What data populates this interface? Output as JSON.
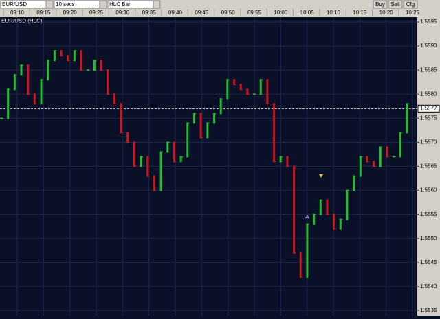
{
  "toolbar": {
    "symbol": "EUR/USD",
    "interval": "10 secs",
    "chart_style": "HLC Bar",
    "buttons": [
      "Buy",
      "Sell",
      "Cfg"
    ]
  },
  "chart_data": {
    "type": "line",
    "title": "EUR/USD (HLC)",
    "x_axis_labels": [
      "09:10",
      "09:15",
      "09:20",
      "09:25",
      "09:30",
      "09:35",
      "09:40",
      "09:45",
      "09:50",
      "09:55",
      "10:00",
      "10:05",
      "10:10",
      "10:15",
      "10:20",
      "10:25"
    ],
    "values": [
      1.5575,
      1.5581,
      1.5584,
      1.5586,
      1.558,
      1.5578,
      1.5583,
      1.5587,
      1.5589,
      1.5588,
      1.5587,
      1.5589,
      1.5585,
      1.5585,
      1.5587,
      1.5585,
      1.558,
      1.5578,
      1.5572,
      1.557,
      1.5565,
      1.5567,
      1.5563,
      1.556,
      1.5568,
      1.557,
      1.5566,
      1.5567,
      1.5574,
      1.5576,
      1.5571,
      1.5574,
      1.5576,
      1.5579,
      1.5583,
      1.5582,
      1.5581,
      1.558,
      1.558,
      1.5583,
      1.5578,
      1.5566,
      1.5567,
      1.5565,
      1.5547,
      1.5542,
      1.5553,
      1.5555,
      1.5558,
      1.5555,
      1.5552,
      1.5554,
      1.556,
      1.5563,
      1.5567,
      1.5566,
      1.5565,
      1.5569,
      1.5567,
      1.5567,
      1.5572,
      1.5578
    ],
    "up_color": "#1fbf2a",
    "down_color": "#d0151a",
    "current_price": 1.5577,
    "ylim": [
      1.5534,
      1.5596
    ],
    "yticks": [
      1.5595,
      {
        "value": 1.559,
        "label": "1.5590"
      },
      1.5585,
      {
        "value": 1.558,
        "label": "1.5580"
      },
      1.5575,
      {
        "value": 1.557,
        "label": "1.5570"
      },
      1.5565,
      {
        "value": 1.556,
        "label": "1.5560"
      },
      1.5555,
      {
        "value": 1.555,
        "label": "1.5550"
      },
      1.5545,
      {
        "value": 1.554,
        "label": "1.5540"
      },
      1.5535
    ],
    "grid": true
  }
}
